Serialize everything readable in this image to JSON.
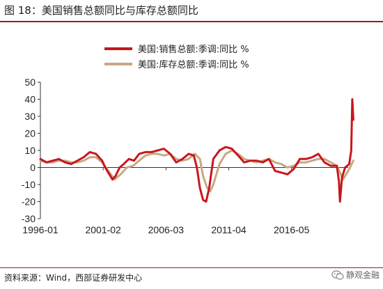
{
  "title": "图 18：美国销售总额同比与库存总额同比",
  "source": "资料来源：Wind，西部证券研发中心",
  "watermark": "静观金融",
  "watermark_icon": "wechat-icon",
  "colors": {
    "sales": "#c8161d",
    "inventory": "#c8a882",
    "title_rule": "#9b1b1b"
  },
  "chart_data": {
    "type": "line",
    "title": "",
    "xlabel": "",
    "ylabel": "",
    "xlim": [
      "1996-01",
      "2020-12"
    ],
    "x_ticks": [
      "1996-01",
      "2001-02",
      "2006-03",
      "2011-04",
      "2016-05"
    ],
    "ylim": [
      -30,
      50
    ],
    "y_ticks": [
      -30,
      -20,
      -10,
      0,
      10,
      20,
      30,
      40,
      50
    ],
    "grid": false,
    "legend": "top-right",
    "series": [
      {
        "name": "美国:销售总额:季调:同比 %",
        "color": "#c8161d",
        "points": [
          [
            "1996-01",
            5
          ],
          [
            "1996-07",
            3
          ],
          [
            "1997-01",
            4
          ],
          [
            "1997-07",
            5
          ],
          [
            "1998-01",
            3
          ],
          [
            "1998-07",
            2
          ],
          [
            "1999-01",
            4
          ],
          [
            "1999-07",
            6
          ],
          [
            "2000-01",
            9
          ],
          [
            "2000-07",
            8
          ],
          [
            "2001-01",
            4
          ],
          [
            "2001-04",
            0
          ],
          [
            "2001-08",
            -4
          ],
          [
            "2001-11",
            -7
          ],
          [
            "2002-02",
            -5
          ],
          [
            "2002-06",
            0
          ],
          [
            "2002-10",
            2
          ],
          [
            "2003-03",
            5
          ],
          [
            "2003-08",
            4
          ],
          [
            "2004-01",
            8
          ],
          [
            "2004-07",
            9
          ],
          [
            "2005-01",
            9
          ],
          [
            "2005-07",
            10
          ],
          [
            "2006-01",
            11
          ],
          [
            "2006-07",
            8
          ],
          [
            "2007-01",
            3
          ],
          [
            "2007-07",
            5
          ],
          [
            "2008-01",
            8
          ],
          [
            "2008-06",
            7
          ],
          [
            "2008-09",
            0
          ],
          [
            "2008-12",
            -12
          ],
          [
            "2009-03",
            -19
          ],
          [
            "2009-06",
            -20
          ],
          [
            "2009-09",
            -12
          ],
          [
            "2010-01",
            5
          ],
          [
            "2010-07",
            10
          ],
          [
            "2011-01",
            12
          ],
          [
            "2011-07",
            11
          ],
          [
            "2012-01",
            7
          ],
          [
            "2012-07",
            3
          ],
          [
            "2013-01",
            4
          ],
          [
            "2013-07",
            4
          ],
          [
            "2014-01",
            3
          ],
          [
            "2014-07",
            5
          ],
          [
            "2015-01",
            -2
          ],
          [
            "2015-07",
            -3
          ],
          [
            "2016-01",
            -4
          ],
          [
            "2016-07",
            -1
          ],
          [
            "2017-01",
            5
          ],
          [
            "2017-07",
            5
          ],
          [
            "2018-01",
            6
          ],
          [
            "2018-07",
            8
          ],
          [
            "2019-01",
            3
          ],
          [
            "2019-07",
            1
          ],
          [
            "2020-01",
            1
          ],
          [
            "2020-03",
            -8
          ],
          [
            "2020-04",
            -20
          ],
          [
            "2020-06",
            -6
          ],
          [
            "2020-09",
            0
          ],
          [
            "2021-01",
            2
          ],
          [
            "2021-03",
            10
          ],
          [
            "2021-04",
            40
          ],
          [
            "2021-05",
            28
          ]
        ]
      },
      {
        "name": "美国:库存总额:季调:同比 %",
        "color": "#c8a882",
        "points": [
          [
            "1996-01",
            4
          ],
          [
            "1996-07",
            3
          ],
          [
            "1997-01",
            3
          ],
          [
            "1997-07",
            4
          ],
          [
            "1998-01",
            4
          ],
          [
            "1998-07",
            3
          ],
          [
            "1999-01",
            3
          ],
          [
            "1999-07",
            4
          ],
          [
            "2000-01",
            6
          ],
          [
            "2000-07",
            6
          ],
          [
            "2001-01",
            3
          ],
          [
            "2001-07",
            -2
          ],
          [
            "2002-01",
            -7
          ],
          [
            "2002-07",
            -4
          ],
          [
            "2003-01",
            0
          ],
          [
            "2003-07",
            1
          ],
          [
            "2004-01",
            4
          ],
          [
            "2004-07",
            7
          ],
          [
            "2005-01",
            8
          ],
          [
            "2005-07",
            8
          ],
          [
            "2006-01",
            7
          ],
          [
            "2006-07",
            8
          ],
          [
            "2007-01",
            5
          ],
          [
            "2007-07",
            4
          ],
          [
            "2008-01",
            5
          ],
          [
            "2008-07",
            8
          ],
          [
            "2008-12",
            5
          ],
          [
            "2009-03",
            -5
          ],
          [
            "2009-07",
            -12
          ],
          [
            "2009-10",
            -14
          ],
          [
            "2010-01",
            -10
          ],
          [
            "2010-07",
            2
          ],
          [
            "2011-01",
            8
          ],
          [
            "2011-07",
            10
          ],
          [
            "2012-01",
            8
          ],
          [
            "2012-07",
            5
          ],
          [
            "2013-01",
            4
          ],
          [
            "2013-07",
            3
          ],
          [
            "2014-01",
            4
          ],
          [
            "2014-07",
            5
          ],
          [
            "2015-01",
            3
          ],
          [
            "2015-07",
            2
          ],
          [
            "2016-01",
            0
          ],
          [
            "2016-07",
            1
          ],
          [
            "2017-01",
            3
          ],
          [
            "2017-07",
            3
          ],
          [
            "2018-01",
            4
          ],
          [
            "2018-07",
            5
          ],
          [
            "2019-01",
            5
          ],
          [
            "2019-07",
            3
          ],
          [
            "2020-01",
            1
          ],
          [
            "2020-04",
            -3
          ],
          [
            "2020-07",
            -7
          ],
          [
            "2020-10",
            -4
          ],
          [
            "2021-01",
            -1
          ],
          [
            "2021-05",
            4
          ]
        ]
      }
    ]
  }
}
